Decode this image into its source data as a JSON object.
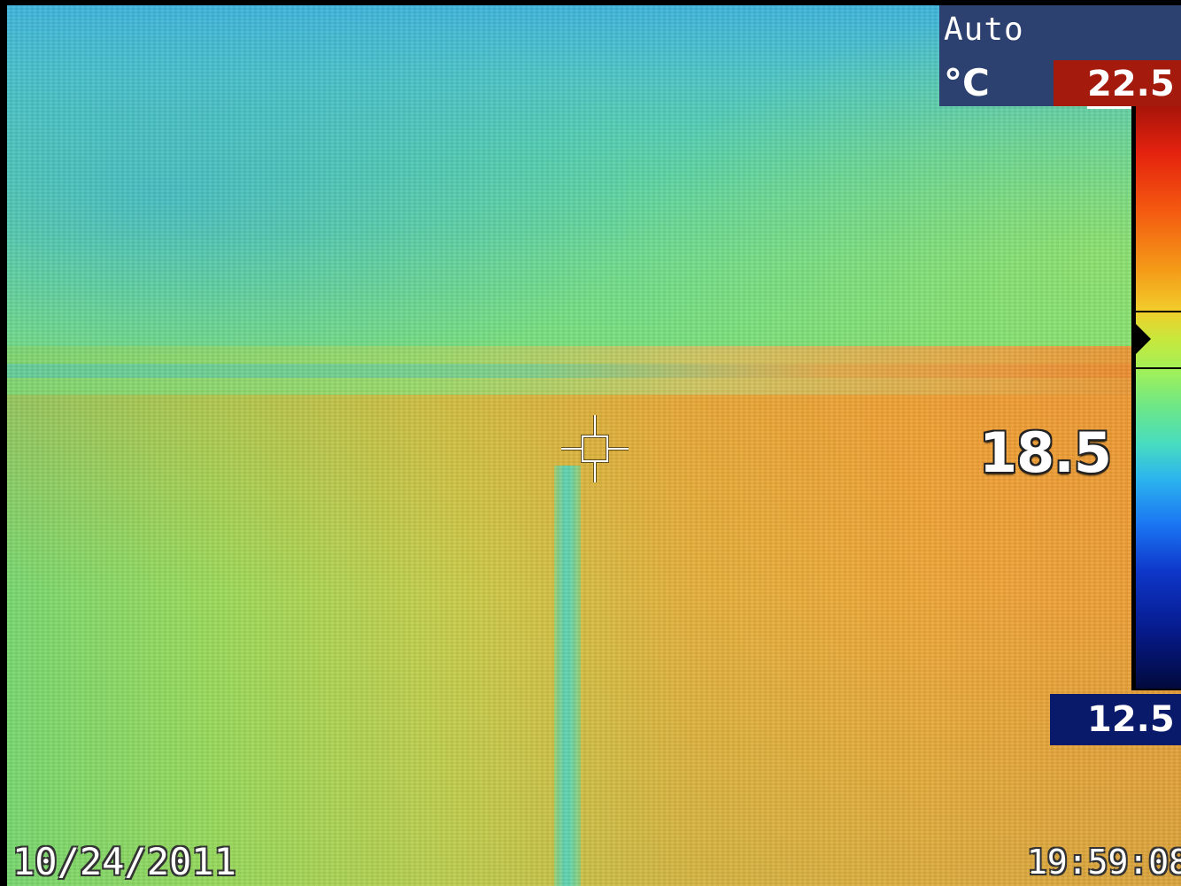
{
  "thermal_view": {
    "mode": "Auto",
    "unit": "°C",
    "range_max": "22.5",
    "range_min": "12.5",
    "spot_temperature": "18.5",
    "spot_marker_icon": "crosshair-icon",
    "level_marker_icon": "triangle-marker-icon",
    "palette": [
      "#a8140a",
      "#e4220e",
      "#f45a10",
      "#f49a18",
      "#f2cc2a",
      "#9cf05c",
      "#48dcc0",
      "#2cb4ee",
      "#1a74f2",
      "#0e36c8",
      "#020a3c"
    ],
    "max_box_color": "#a41a0c",
    "min_box_color": "#0a1a6a",
    "panel_color": "#2d4170"
  },
  "footer": {
    "date": "10/24/2011",
    "time": "19:59:08"
  }
}
